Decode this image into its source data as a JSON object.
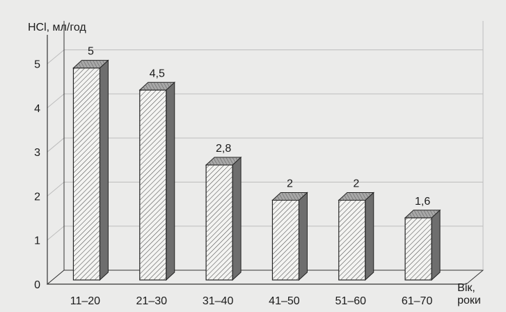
{
  "chart_data": {
    "type": "bar",
    "ylabel": "HCl, мл/год",
    "xlabel_line1": "Вік,",
    "xlabel_line2": "роки",
    "categories": [
      "11–20",
      "21–30",
      "31–40",
      "41–50",
      "51–60",
      "61–70"
    ],
    "values": [
      5,
      4.5,
      2.8,
      2,
      2,
      1.6
    ],
    "value_labels": [
      "5",
      "4,5",
      "2,8",
      "2",
      "2",
      "1,6"
    ],
    "y_ticks": [
      0,
      1,
      2,
      3,
      4,
      5
    ],
    "ylim": [
      0,
      5.5
    ],
    "grid": true,
    "style": "3d-hatched",
    "colors": {
      "background": "#ebebea",
      "bar_front": "#f4f4f2",
      "bar_side": "#6e6e6e",
      "bar_top": "#a8a8a8",
      "hatch": "#4a4a4a",
      "grid": "#bdbdbd",
      "axis": "#333333"
    }
  }
}
